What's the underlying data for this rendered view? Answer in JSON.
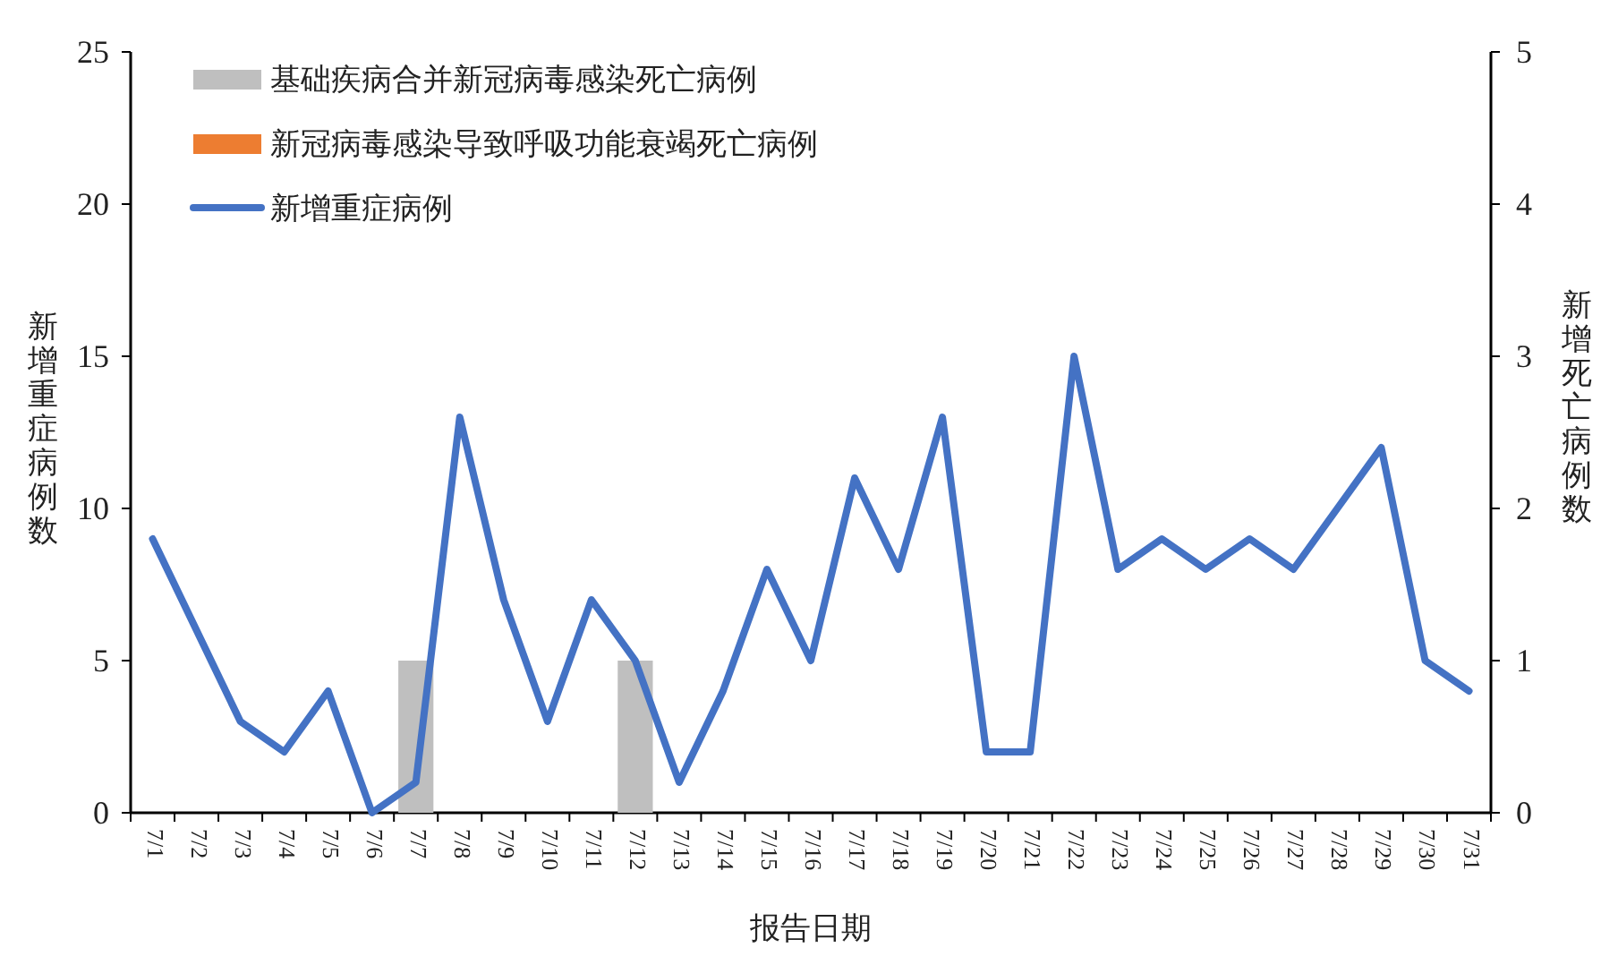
{
  "chart_data": {
    "type": "bar",
    "xlabel": "报告日期",
    "ylabel": "新增重症病例数",
    "y2label": "新增死亡病例数",
    "categories": [
      "7/1",
      "7/2",
      "7/3",
      "7/4",
      "7/5",
      "7/6",
      "7/7",
      "7/8",
      "7/9",
      "7/10",
      "7/11",
      "7/12",
      "7/13",
      "7/14",
      "7/15",
      "7/16",
      "7/17",
      "7/18",
      "7/19",
      "7/20",
      "7/21",
      "7/22",
      "7/23",
      "7/24",
      "7/25",
      "7/26",
      "7/27",
      "7/28",
      "7/29",
      "7/30",
      "7/31"
    ],
    "series": [
      {
        "name": "基础疾病合并新冠病毒感染死亡病例",
        "axis": "y2",
        "color": "#bfbfbf",
        "values": [
          null,
          null,
          null,
          null,
          null,
          null,
          1,
          null,
          null,
          null,
          null,
          1,
          null,
          null,
          null,
          null,
          null,
          null,
          null,
          null,
          null,
          null,
          null,
          null,
          null,
          null,
          null,
          null,
          null,
          null,
          null
        ]
      },
      {
        "name": "新冠病毒感染导致呼吸功能衰竭死亡病例",
        "axis": "y2",
        "color": "#ed7d31",
        "values": [
          null,
          null,
          null,
          null,
          null,
          null,
          null,
          null,
          null,
          null,
          null,
          null,
          null,
          null,
          null,
          null,
          null,
          null,
          null,
          null,
          null,
          null,
          null,
          null,
          null,
          null,
          null,
          null,
          null,
          null,
          null
        ]
      },
      {
        "name": "新增重症病例",
        "type": "line",
        "axis": "y",
        "color": "#4472c4",
        "values": [
          9,
          6,
          3,
          2,
          4,
          0,
          1,
          13,
          7,
          3,
          7,
          5,
          1,
          4,
          8,
          5,
          11,
          8,
          13,
          2,
          2,
          15,
          8,
          9,
          8,
          9,
          8,
          10,
          12,
          5,
          4
        ]
      }
    ],
    "ylim": [
      0,
      25
    ],
    "yticks": [
      0,
      5,
      10,
      15,
      20,
      25
    ],
    "y2lim": [
      0,
      5
    ],
    "y2ticks": [
      0,
      1,
      2,
      3,
      4,
      5
    ],
    "legend": "top left",
    "grid": false,
    "marker": "none",
    "line_style": "solid"
  }
}
